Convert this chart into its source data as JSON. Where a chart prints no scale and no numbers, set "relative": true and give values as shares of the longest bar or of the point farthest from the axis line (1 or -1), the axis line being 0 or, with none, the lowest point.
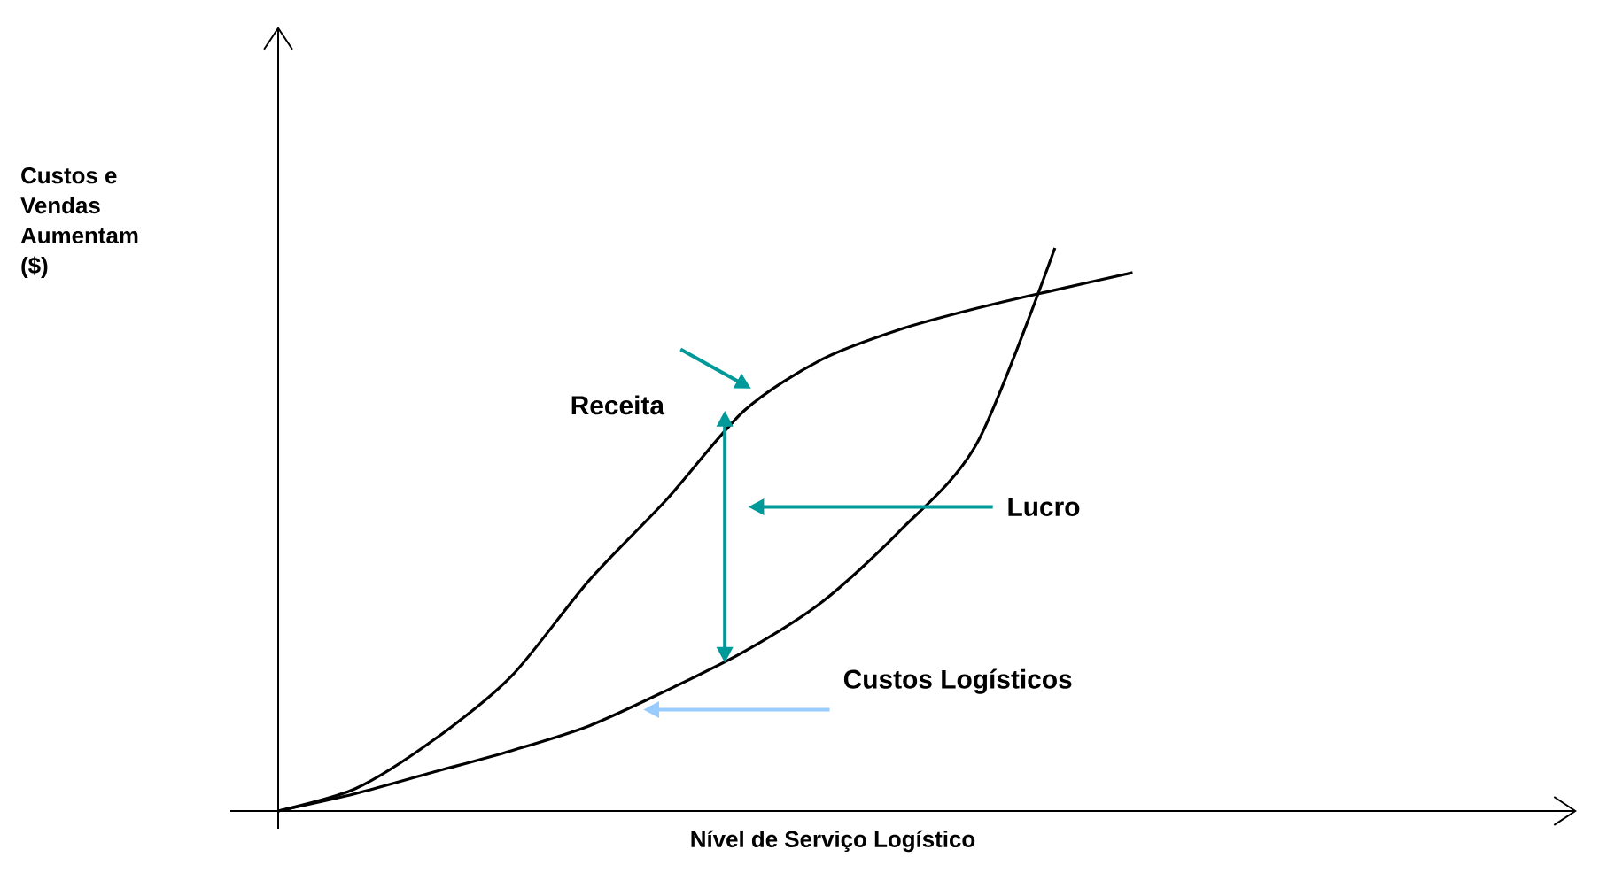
{
  "chart_data": {
    "type": "line",
    "relative": true,
    "xlabel": "Nível de Serviço Logístico",
    "ylabel": "Custos e Vendas Aumentam ($)",
    "categories": [
      null,
      null,
      null,
      null,
      null,
      null,
      null,
      null,
      null,
      null,
      null,
      null
    ],
    "series": [
      {
        "name": "Receita",
        "color": "#000000",
        "values": [
          0,
          0.04,
          0.126,
          0.239,
          0.409,
          0.553,
          0.711,
          0.802,
          0.855,
          0.893,
          0.925,
          0.956
        ]
      },
      {
        "name": "Custos Logísticos",
        "color": "#000000",
        "values": [
          0,
          0.031,
          0.069,
          0.107,
          0.151,
          0.214,
          0.283,
          0.371,
          0.497,
          0.654,
          1,
          null
        ]
      }
    ],
    "annotations": [
      "Lucro"
    ],
    "marker": "none",
    "line_style": "solid"
  }
}
